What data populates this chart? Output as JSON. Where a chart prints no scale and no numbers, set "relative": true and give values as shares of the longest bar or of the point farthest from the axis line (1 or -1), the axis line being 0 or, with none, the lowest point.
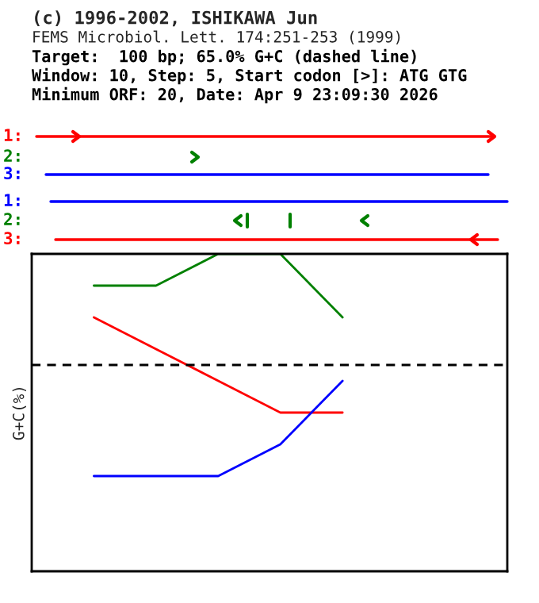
{
  "chart_data": [
    {
      "type": "other",
      "title": "(c) 1996-2002, ISHIKAWA Jun",
      "subtitle": "FEMS Microbiol. Lett. 174:251-253 (1999)",
      "annotations": [
        "Target:  100 bp; 65.0% G+C (dashed line)",
        "Window: 10, Step: 5, Start codon [>]: ATG GTG",
        "Minimum ORF: 20, Date: Apr 9 23:09:30 2026",
        "1:",
        "2:",
        "3:",
        "1:",
        "2:",
        "3:"
      ],
      "colors": [
        "#000000",
        "#000000",
        "#000000",
        "#ff0000",
        "#008000",
        "#0000ff",
        "#0000ff",
        "#008000",
        "#ff0000"
      ]
    },
    {
      "type": "line",
      "relative": true,
      "ylabel": "G+C(%)",
      "categories": [
        null,
        null,
        null,
        null,
        null
      ],
      "series": [
        {
          "color": "#ff0000",
          "values": [
            0.8,
            0.7,
            0.6,
            0.5,
            0.5
          ]
        },
        {
          "color": "#008000",
          "values": [
            0.9,
            0.9,
            1.0,
            1.0,
            0.8
          ]
        },
        {
          "color": "#0000ff",
          "values": [
            0.3,
            0.3,
            0.3,
            0.4,
            0.6
          ]
        }
      ],
      "ref_lines": [
        {
          "axis": "y",
          "value": 0.65,
          "color": "#000000",
          "line_style": "dashed"
        }
      ],
      "grid": false,
      "marker": "none",
      "line_style": "solid"
    }
  ]
}
